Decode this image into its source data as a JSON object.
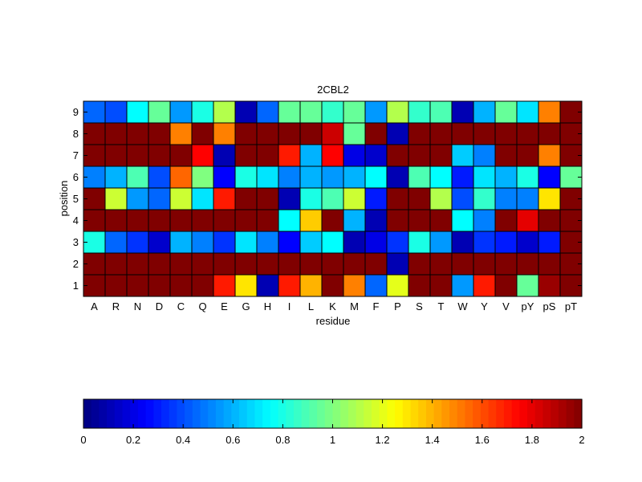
{
  "chart_data": {
    "type": "heatmap",
    "title": "2CBL2",
    "xlabel": "residue",
    "ylabel": "position",
    "columns": [
      "A",
      "R",
      "N",
      "D",
      "C",
      "Q",
      "E",
      "G",
      "H",
      "I",
      "L",
      "K",
      "M",
      "F",
      "P",
      "S",
      "T",
      "W",
      "Y",
      "V",
      "pY",
      "pS",
      "pT"
    ],
    "rows": [
      "9",
      "8",
      "7",
      "6",
      "5",
      "4",
      "3",
      "2",
      "1"
    ],
    "values": [
      [
        0.45,
        0.4,
        0.75,
        0.95,
        0.55,
        0.8,
        1.1,
        0.1,
        0.45,
        0.95,
        0.95,
        0.85,
        0.95,
        0.55,
        1.1,
        0.85,
        0.9,
        0.1,
        0.6,
        0.95,
        0.7,
        1.5,
        2.0
      ],
      [
        2.0,
        2.0,
        2.0,
        2.0,
        1.5,
        2.0,
        1.5,
        2.0,
        2.0,
        2.0,
        2.0,
        1.85,
        0.95,
        2.0,
        0.1,
        2.0,
        2.0,
        2.0,
        2.0,
        2.0,
        2.0,
        2.0,
        2.0
      ],
      [
        2.0,
        2.0,
        2.0,
        2.0,
        2.0,
        1.75,
        0.1,
        2.0,
        2.0,
        1.7,
        0.6,
        1.75,
        0.2,
        0.15,
        2.0,
        2.0,
        2.0,
        0.65,
        0.5,
        2.0,
        2.0,
        1.5,
        2.0
      ],
      [
        0.5,
        0.6,
        0.9,
        0.4,
        1.55,
        1.0,
        0.25,
        0.8,
        0.7,
        0.5,
        0.6,
        0.55,
        0.6,
        0.75,
        0.1,
        0.9,
        0.75,
        0.3,
        0.7,
        0.6,
        0.8,
        0.25,
        0.95
      ],
      [
        2.0,
        1.15,
        0.55,
        0.45,
        1.15,
        0.7,
        1.7,
        2.0,
        2.0,
        0.1,
        0.8,
        0.9,
        1.15,
        0.3,
        2.0,
        2.0,
        1.1,
        0.4,
        0.85,
        0.5,
        0.5,
        1.3,
        2.0
      ],
      [
        2.0,
        2.0,
        2.0,
        2.0,
        2.0,
        2.0,
        2.0,
        2.0,
        2.0,
        0.75,
        1.35,
        2.0,
        0.6,
        0.1,
        2.0,
        2.0,
        2.0,
        0.75,
        0.5,
        2.0,
        1.8,
        2.0,
        2.0
      ],
      [
        0.8,
        0.45,
        0.35,
        0.15,
        0.6,
        0.5,
        0.35,
        0.7,
        0.5,
        0.25,
        0.65,
        0.75,
        0.1,
        0.2,
        0.35,
        0.8,
        0.55,
        0.1,
        0.35,
        0.3,
        0.15,
        0.3,
        2.0
      ],
      [
        2.0,
        2.0,
        2.0,
        2.0,
        2.0,
        2.0,
        2.0,
        2.0,
        2.0,
        2.0,
        2.0,
        2.0,
        2.0,
        2.0,
        0.1,
        2.0,
        2.0,
        2.0,
        2.0,
        2.0,
        2.0,
        2.0,
        2.0
      ],
      [
        2.0,
        2.0,
        2.0,
        2.0,
        2.0,
        2.0,
        1.7,
        1.3,
        0.1,
        1.7,
        1.4,
        2.0,
        1.5,
        0.45,
        1.2,
        2.0,
        2.0,
        0.55,
        1.7,
        2.0,
        0.95,
        1.95,
        2.0
      ]
    ],
    "colorbar": {
      "colormap": "jet",
      "range": [
        0,
        2
      ],
      "ticks": [
        "0",
        "0.2",
        "0.4",
        "0.6",
        "0.8",
        "1",
        "1.2",
        "1.4",
        "1.6",
        "1.8",
        "2"
      ]
    }
  }
}
